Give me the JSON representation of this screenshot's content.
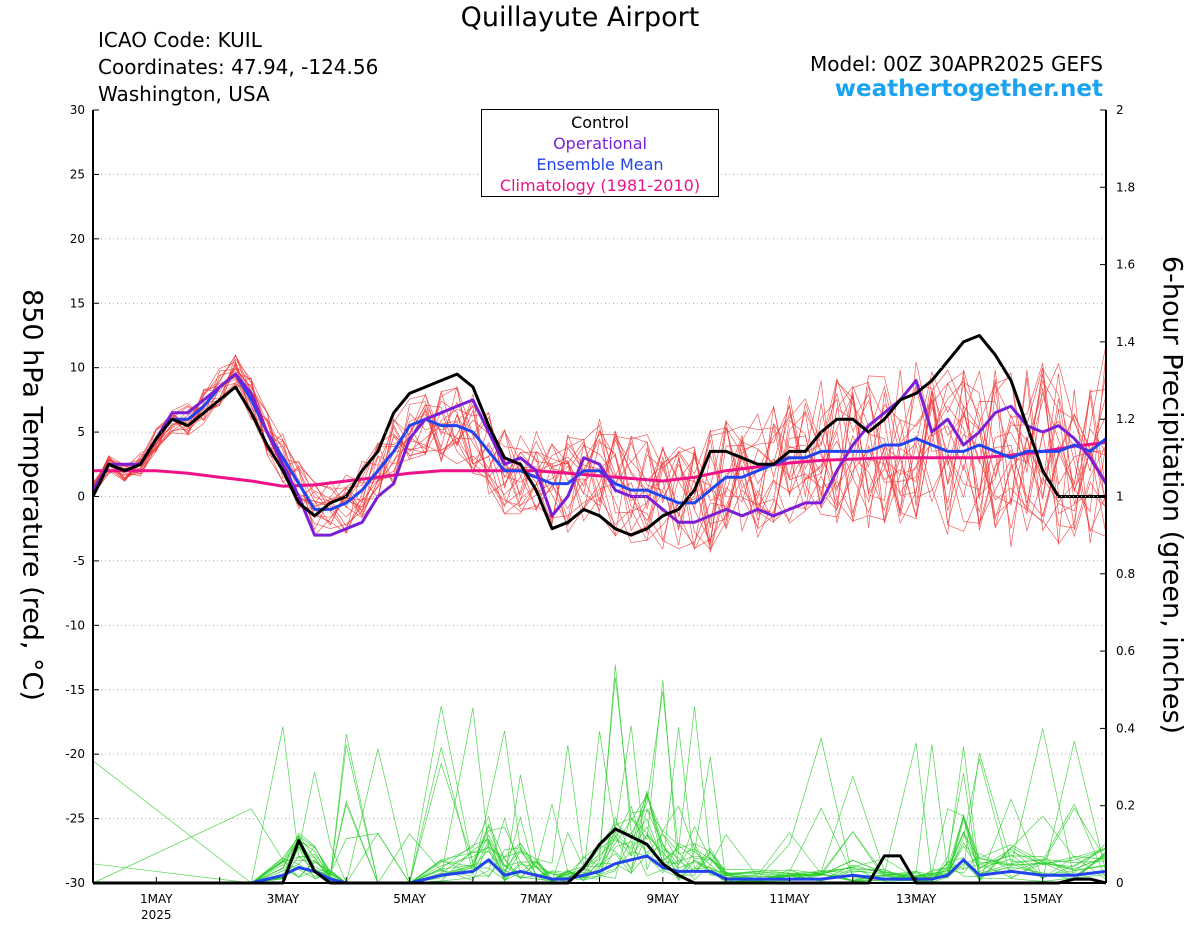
{
  "header": {
    "title": "Quillayute Airport",
    "icao": "ICAO Code: KUIL",
    "coords": "Coordinates: 47.94, -124.56",
    "region": "Washington, USA",
    "model": "Model: 00Z 30APR2025 GEFS",
    "site": "weathertogether.net"
  },
  "colors": {
    "control": "#000000",
    "operational": "#7b1fd6",
    "ensemble_mean": "#2244ee",
    "climatology": "#ee1188",
    "temp_members": "#ee3333",
    "precip_members": "#22cc22"
  },
  "chart_data": {
    "type": "line",
    "xlabel_ticks": [
      "1MAY",
      "3MAY",
      "5MAY",
      "7MAY",
      "9MAY",
      "11MAY",
      "13MAY",
      "15MAY"
    ],
    "xlabel_year": "2025",
    "x_range_days_from_apr30_00z": [
      0,
      16
    ],
    "ylabel_left": "850 hPa Temperature (red, °C)",
    "ylabel_right": "6-hour Precipitation (green, inches)",
    "ylim_left": [
      -30,
      30
    ],
    "yticks_left": [
      30,
      25,
      20,
      15,
      10,
      5,
      0,
      -5,
      -10,
      -15,
      -20,
      -25,
      -30
    ],
    "ylim_right": [
      0,
      2
    ],
    "yticks_right": [
      "2",
      "1.8",
      "1.6",
      "1.4",
      "1.2",
      "1",
      "0.8",
      "0.6",
      "0.4",
      "0.2",
      "0"
    ],
    "legend": [
      "Control",
      "Operational",
      "Ensemble Mean",
      "Climatology (1981-2010)"
    ],
    "legend_placement": "top-center",
    "temperature_series": [
      {
        "name": "Control",
        "x": [
          0,
          0.25,
          0.5,
          0.75,
          1,
          1.25,
          1.5,
          1.75,
          2,
          2.25,
          2.5,
          2.75,
          3,
          3.25,
          3.5,
          3.75,
          4,
          4.25,
          4.5,
          4.75,
          5,
          5.25,
          5.5,
          5.75,
          6,
          6.25,
          6.5,
          6.75,
          7,
          7.25,
          7.5,
          7.75,
          8,
          8.25,
          8.5,
          8.75,
          9,
          9.25,
          9.5,
          9.75,
          10,
          10.25,
          10.5,
          10.75,
          11,
          11.25,
          11.5,
          11.75,
          12,
          12.25,
          12.5,
          12.75,
          13,
          13.25,
          13.5,
          13.75,
          14,
          14.25,
          14.5,
          14.75,
          15,
          15.25,
          15.5,
          15.75,
          16
        ],
        "y": [
          0,
          2.5,
          2,
          2.5,
          4.5,
          6,
          5.5,
          6.5,
          7.5,
          8.5,
          6.5,
          4,
          2,
          -0.5,
          -1.5,
          -0.5,
          0,
          2,
          3.5,
          6.5,
          8,
          8.5,
          9,
          9.5,
          8.5,
          5.5,
          3,
          2.5,
          0.5,
          -2.5,
          -2,
          -1,
          -1.5,
          -2.5,
          -3,
          -2.5,
          -1.5,
          -1,
          0.5,
          3.5,
          3.5,
          3,
          2.5,
          2.5,
          3.5,
          3.5,
          5,
          6,
          6,
          5,
          6,
          7.5,
          8,
          9,
          10.5,
          12,
          12.5,
          11,
          9,
          5.5,
          2,
          0,
          0,
          0,
          0
        ]
      },
      {
        "name": "Operational",
        "x": [
          0,
          0.25,
          0.5,
          0.75,
          1,
          1.25,
          1.5,
          1.75,
          2,
          2.25,
          2.5,
          2.75,
          3,
          3.25,
          3.5,
          3.75,
          4,
          4.25,
          4.5,
          4.75,
          5,
          5.25,
          5.5,
          5.75,
          6,
          6.25,
          6.5,
          6.75,
          7,
          7.25,
          7.5,
          7.75,
          8,
          8.25,
          8.5,
          8.75,
          9,
          9.25,
          9.5,
          9.75,
          10,
          10.25,
          10.5,
          10.75,
          11,
          11.25,
          11.5,
          11.75,
          12,
          12.25,
          12.5,
          12.75,
          13,
          13.25,
          13.5,
          13.75,
          14,
          14.25,
          14.5,
          14.75,
          15,
          15.25,
          15.5,
          15.75,
          16
        ],
        "y": [
          0.5,
          2.5,
          2.5,
          2.5,
          4.5,
          6.5,
          6.5,
          7.5,
          8.5,
          9.5,
          8,
          5,
          2.5,
          0,
          -3,
          -3,
          -2.5,
          -2,
          0,
          1,
          4.5,
          6,
          6.5,
          7,
          7.5,
          5,
          2.5,
          3,
          2,
          -1.5,
          0,
          3,
          2.5,
          0.5,
          0,
          0,
          -1,
          -2,
          -2,
          -1.5,
          -1,
          -1.5,
          -1,
          -1.5,
          -1,
          -0.5,
          -0.5,
          2,
          4,
          5.5,
          6.5,
          7.5,
          9,
          5,
          6,
          4,
          5,
          6.5,
          7,
          5.5,
          5,
          5.5,
          4.5,
          3,
          1
        ]
      },
      {
        "name": "Ensemble Mean",
        "x": [
          0,
          0.25,
          0.5,
          0.75,
          1,
          1.25,
          1.5,
          1.75,
          2,
          2.25,
          2.5,
          2.75,
          3,
          3.25,
          3.5,
          3.75,
          4,
          4.25,
          4.5,
          4.75,
          5,
          5.25,
          5.5,
          5.75,
          6,
          6.25,
          6.5,
          6.75,
          7,
          7.25,
          7.5,
          7.75,
          8,
          8.25,
          8.5,
          8.75,
          9,
          9.25,
          9.5,
          9.75,
          10,
          10.25,
          10.5,
          10.75,
          11,
          11.25,
          11.5,
          11.75,
          12,
          12.25,
          12.5,
          12.75,
          13,
          13.25,
          13.5,
          13.75,
          14,
          14.25,
          14.5,
          14.75,
          15,
          15.25,
          15.5,
          15.75,
          16
        ],
        "y": [
          0.5,
          2.5,
          2,
          2.5,
          4.5,
          6,
          6,
          7,
          8.5,
          9.5,
          7.5,
          5,
          3,
          1,
          -1,
          -1,
          -0.5,
          0.5,
          2,
          3.5,
          5.5,
          6,
          5.5,
          5.5,
          5,
          3.5,
          2,
          2,
          1.5,
          1,
          1,
          2,
          2,
          1,
          0.5,
          0.5,
          0,
          -0.5,
          -0.5,
          0.5,
          1.5,
          1.5,
          2,
          2.5,
          3,
          3,
          3.5,
          3.5,
          3.5,
          3.5,
          4,
          4,
          4.5,
          4,
          3.5,
          3.5,
          4,
          3.5,
          3,
          3.5,
          3.5,
          3.5,
          4,
          3.5,
          4.5
        ]
      },
      {
        "name": "Climatology (1981-2010)",
        "x": [
          0,
          0.5,
          1,
          1.5,
          2,
          2.5,
          3,
          3.5,
          4,
          4.5,
          5,
          5.5,
          6,
          6.5,
          7,
          7.5,
          8,
          8.5,
          9,
          9.5,
          10,
          10.5,
          11,
          11.5,
          12,
          12.5,
          13,
          13.5,
          14,
          14.5,
          15,
          15.5,
          16
        ],
        "y": [
          2,
          2,
          2,
          1.8,
          1.5,
          1.2,
          0.8,
          0.9,
          1.2,
          1.5,
          1.8,
          2,
          2,
          2,
          2,
          1.8,
          1.6,
          1.4,
          1.2,
          1.5,
          2,
          2.3,
          2.6,
          2.8,
          2.9,
          3,
          3,
          3,
          3,
          3.2,
          3.5,
          3.9,
          4.2
        ]
      }
    ],
    "precipitation_series": [
      {
        "name": "Control",
        "x": [
          0,
          2.5,
          3,
          3.25,
          3.5,
          3.75,
          4,
          5,
          6,
          7,
          7.25,
          7.5,
          7.75,
          8,
          8.25,
          8.5,
          8.75,
          9,
          9.25,
          9.5,
          9.75,
          10,
          11,
          12,
          12.25,
          12.5,
          12.75,
          13,
          13.25,
          14,
          15,
          15.25,
          15.5,
          15.75,
          16
        ],
        "y": [
          0,
          0,
          0,
          0.11,
          0.03,
          0,
          0,
          0,
          0,
          0,
          0,
          0,
          0.04,
          0.1,
          0.14,
          0.12,
          0.1,
          0.05,
          0.02,
          0,
          0,
          0,
          0,
          0,
          0,
          0.07,
          0.07,
          0,
          0,
          0,
          0,
          0,
          0.01,
          0.01,
          0
        ]
      },
      {
        "name": "Ensemble Mean",
        "x": [
          0,
          2.5,
          3,
          3.25,
          3.5,
          3.75,
          4,
          4.5,
          5,
          5.5,
          6,
          6.25,
          6.5,
          6.75,
          7,
          7.25,
          7.5,
          7.75,
          8,
          8.25,
          8.5,
          8.75,
          9,
          9.25,
          9.5,
          9.75,
          10,
          10.5,
          11,
          11.5,
          12,
          12.5,
          13,
          13.25,
          13.5,
          13.75,
          14,
          14.5,
          15,
          15.5,
          16
        ],
        "y": [
          0,
          0,
          0.02,
          0.04,
          0.03,
          0.01,
          0,
          0,
          0,
          0.02,
          0.03,
          0.06,
          0.02,
          0.03,
          0.02,
          0.01,
          0.01,
          0.02,
          0.03,
          0.05,
          0.06,
          0.07,
          0.04,
          0.03,
          0.03,
          0.03,
          0.01,
          0.01,
          0.01,
          0.01,
          0.02,
          0.01,
          0.01,
          0.01,
          0.02,
          0.06,
          0.02,
          0.03,
          0.02,
          0.02,
          0.03
        ]
      }
    ]
  }
}
